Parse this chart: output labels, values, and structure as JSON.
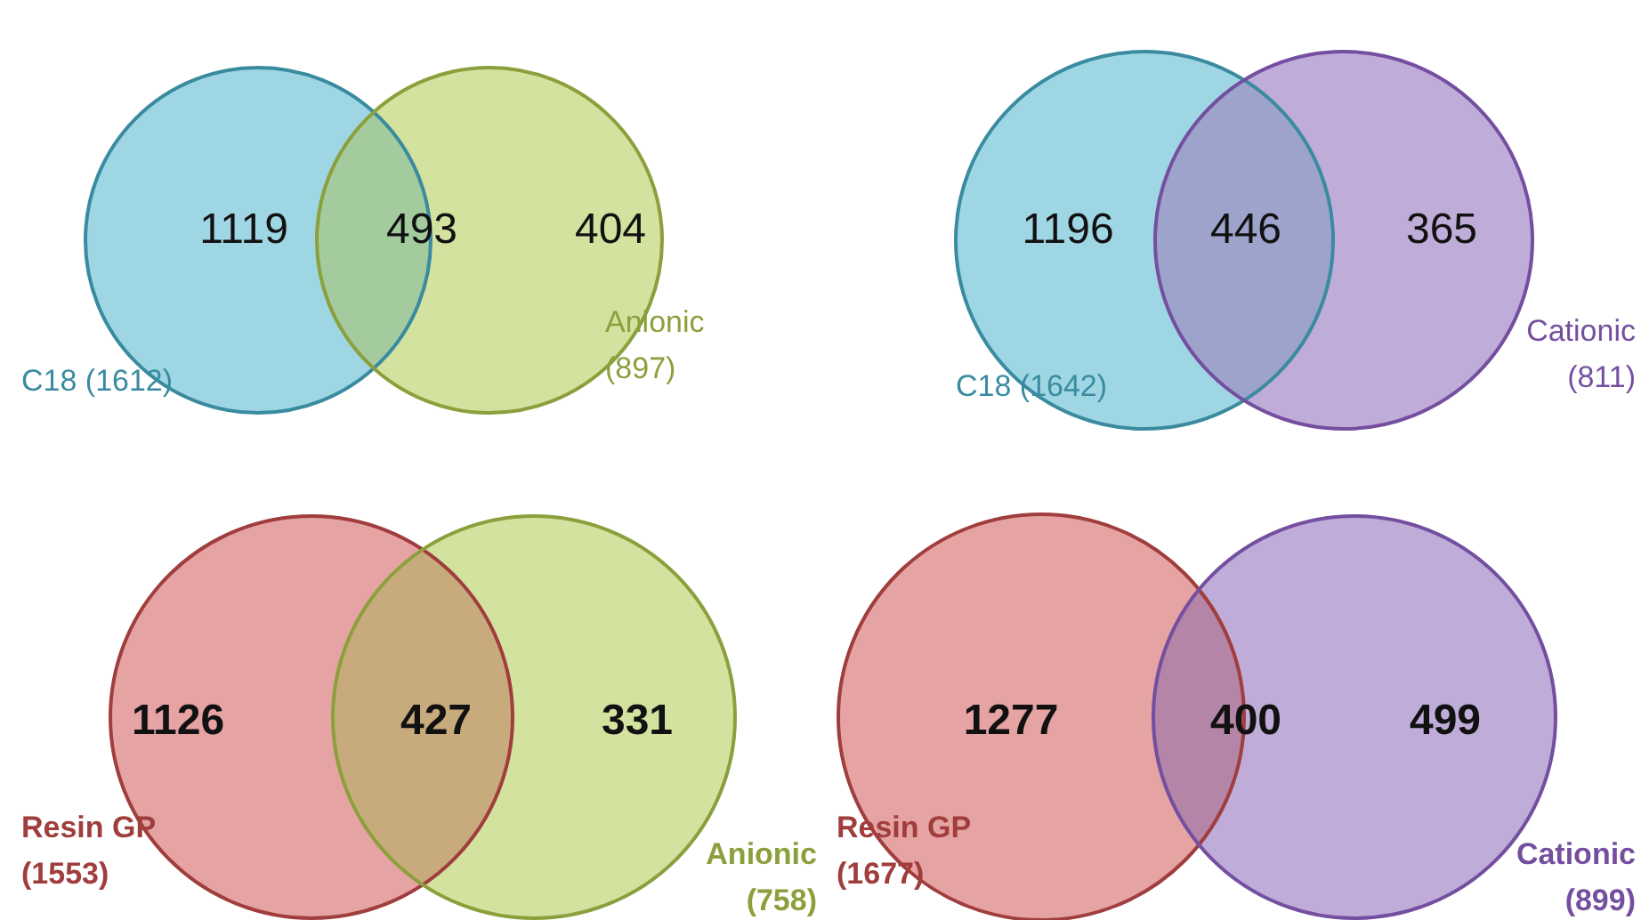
{
  "chart_data": [
    {
      "type": "other",
      "categories": [
        "C18 (1612)",
        null,
        "Anionic (897)"
      ],
      "values": [
        1119,
        493,
        404
      ],
      "colors": [
        "#9fd6e4",
        "#a3cb9e",
        "#d4e2a0"
      ],
      "data_labels": true
    },
    {
      "type": "other",
      "categories": [
        "C18 (1642)",
        null,
        "Cationic (811)"
      ],
      "values": [
        1196,
        446,
        365
      ],
      "colors": [
        "#9fd6e4",
        "#9ea3cc",
        "#c0acd8"
      ],
      "data_labels": true
    },
    {
      "type": "other",
      "categories": [
        "Resin GP (1553)",
        null,
        "Anionic (758)"
      ],
      "values": [
        1126,
        427,
        331
      ],
      "colors": [
        "#e6a3a3",
        "#c8ab7c",
        "#d4e2a0"
      ],
      "data_labels": true
    },
    {
      "type": "other",
      "categories": [
        "Resin GP (1677)",
        null,
        "Cationic (899)"
      ],
      "values": [
        1277,
        400,
        499
      ],
      "colors": [
        "#e6a3a3",
        "#b585a8",
        "#c0acd8"
      ],
      "data_labels": true
    }
  ]
}
